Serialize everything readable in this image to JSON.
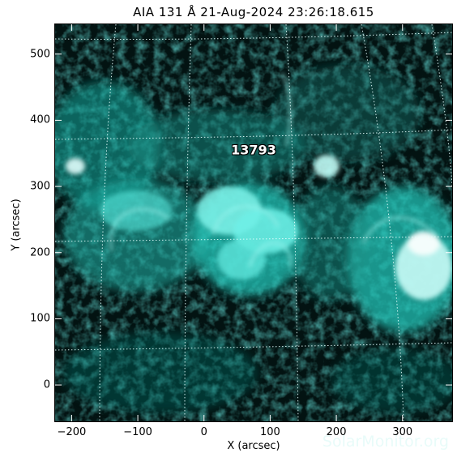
{
  "title": "AIA 131 Å 21-Aug-2024 23:26:18.615",
  "x_axis": {
    "label": "X (arcsec)",
    "range": [
      -225,
      375
    ],
    "ticks": [
      -200,
      -100,
      0,
      100,
      200,
      300
    ],
    "tick_labels": [
      "−200",
      "−100",
      "0",
      "100",
      "200",
      "300"
    ]
  },
  "y_axis": {
    "label": "Y (arcsec)",
    "range": [
      -55,
      545
    ],
    "ticks": [
      0,
      100,
      200,
      300,
      400,
      500
    ],
    "tick_labels": [
      "0",
      "100",
      "200",
      "300",
      "400",
      "500"
    ]
  },
  "active_region": {
    "number": "13793",
    "x": 75,
    "y": 355
  },
  "watermark": "SolarMonitor.org",
  "colors": {
    "background": "#031312",
    "emission": "#3fe6da",
    "grid": "#e6ffff"
  }
}
